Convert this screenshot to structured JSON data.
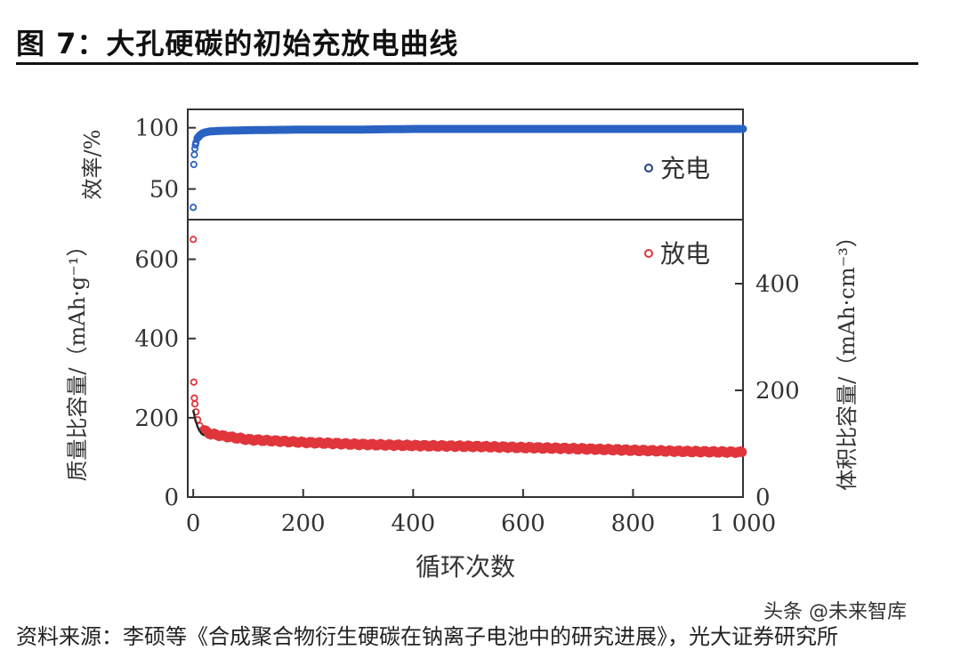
{
  "figure": {
    "title": "图 7：大孔硬碳的初始充放电曲线",
    "source": "资料来源：李硕等《合成聚合物衍生硬碳在钠离子电池中的研究进展》，光大证券研究所",
    "watermark": "头条 @未来智库"
  },
  "chart_data": [
    {
      "type": "scatter",
      "panel": "efficiency",
      "ylabel": "效率/%",
      "xlim": [
        -10,
        1000
      ],
      "ylim": [
        25,
        115
      ],
      "yticks": [
        50,
        100
      ],
      "grid": false,
      "legend_position": "right",
      "series": [
        {
          "name": "充电",
          "color": "#2a62c2",
          "points": [
            [
              0,
              35
            ],
            [
              1,
              70
            ],
            [
              2,
              78
            ],
            [
              3,
              83
            ],
            [
              4,
              86
            ],
            [
              5,
              88
            ],
            [
              7,
              91
            ],
            [
              10,
              93
            ],
            [
              15,
              95
            ],
            [
              20,
              96
            ],
            [
              30,
              97
            ],
            [
              50,
              97.5
            ],
            [
              100,
              98
            ],
            [
              200,
              98.5
            ],
            [
              300,
              98.5
            ],
            [
              400,
              99
            ],
            [
              500,
              99
            ],
            [
              600,
              99
            ],
            [
              700,
              99
            ],
            [
              800,
              99
            ],
            [
              900,
              99
            ],
            [
              1000,
              99
            ]
          ]
        }
      ]
    },
    {
      "type": "scatter",
      "panel": "capacity",
      "xlabel": "循环次数",
      "ylabel": "质量比容量/（mAh·g⁻¹）",
      "y2label": "体积比容量/（mAh·cm⁻³）",
      "xlim": [
        -10,
        1000
      ],
      "xticks": [
        0,
        200,
        400,
        600,
        800,
        1000
      ],
      "xtick_labels": [
        "0",
        "200",
        "400",
        "600",
        "800",
        "1 000"
      ],
      "ylim": [
        0,
        700
      ],
      "yticks": [
        0,
        200,
        400,
        600
      ],
      "y2lim": [
        0,
        520
      ],
      "y2ticks": [
        0,
        200,
        400
      ],
      "grid": false,
      "legend_position": "top-right",
      "series": [
        {
          "name": "放电",
          "color": "#e0353b",
          "points": [
            [
              0,
              650
            ],
            [
              1,
              290
            ],
            [
              2,
              250
            ],
            [
              3,
              235
            ],
            [
              5,
              215
            ],
            [
              8,
              195
            ],
            [
              12,
              180
            ],
            [
              20,
              168
            ],
            [
              30,
              160
            ],
            [
              50,
              155
            ],
            [
              100,
              145
            ],
            [
              200,
              138
            ],
            [
              300,
              133
            ],
            [
              400,
              130
            ],
            [
              500,
              128
            ],
            [
              600,
              125
            ],
            [
              700,
              122
            ],
            [
              800,
              118
            ],
            [
              900,
              115
            ],
            [
              1000,
              113
            ]
          ]
        },
        {
          "name": "",
          "color": "#222222",
          "points": [
            [
              0,
              220
            ],
            [
              3,
              200
            ],
            [
              6,
              185
            ],
            [
              10,
              170
            ],
            [
              15,
              160
            ],
            [
              20,
              155
            ]
          ]
        }
      ]
    }
  ]
}
